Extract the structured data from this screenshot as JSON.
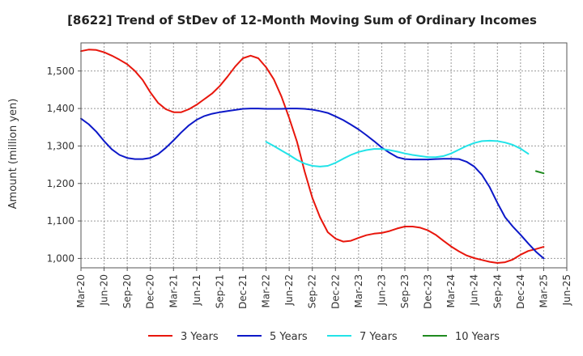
{
  "chart_data": {
    "type": "line",
    "title": "[8622]  Trend of StDev of 12-Month Moving Sum of Ordinary Incomes",
    "xlabel": "",
    "ylabel": "Amount (million yen)",
    "ylim": [
      975,
      1575
    ],
    "y_ticks": [
      1000,
      1100,
      1200,
      1300,
      1400,
      1500
    ],
    "y_tick_labels": [
      "1,000",
      "1,100",
      "1,200",
      "1,300",
      "1,400",
      "1,500"
    ],
    "x_ticks": [
      "Mar-20",
      "Jun-20",
      "Sep-20",
      "Dec-20",
      "Mar-21",
      "Jun-21",
      "Sep-21",
      "Dec-21",
      "Mar-22",
      "Jun-22",
      "Sep-22",
      "Dec-22",
      "Mar-23",
      "Jun-23",
      "Sep-23",
      "Dec-23",
      "Mar-24",
      "Jun-24",
      "Sep-24",
      "Dec-24",
      "Mar-25",
      "Jun-25"
    ],
    "grid": true,
    "legend_position": "bottom",
    "series": [
      {
        "name": "3 Years",
        "color": "#e8160c",
        "start_month_index": 0,
        "values": [
          1553,
          1557,
          1556,
          1550,
          1541,
          1530,
          1518,
          1500,
          1476,
          1443,
          1415,
          1398,
          1390,
          1390,
          1398,
          1410,
          1425,
          1440,
          1460,
          1485,
          1512,
          1534,
          1541,
          1534,
          1510,
          1478,
          1432,
          1375,
          1312,
          1232,
          1162,
          1110,
          1070,
          1053,
          1045,
          1047,
          1055,
          1062,
          1066,
          1068,
          1073,
          1080,
          1085,
          1085,
          1082,
          1075,
          1063,
          1047,
          1032,
          1019,
          1008,
          1001,
          996,
          991,
          988,
          990,
          997,
          1010,
          1020,
          1025,
          1031
        ]
      },
      {
        "name": "5 Years",
        "color": "#0c18c8",
        "start_month_index": 0,
        "values": [
          1373,
          1358,
          1338,
          1313,
          1291,
          1276,
          1268,
          1265,
          1265,
          1268,
          1278,
          1295,
          1315,
          1336,
          1355,
          1370,
          1380,
          1386,
          1390,
          1393,
          1396,
          1399,
          1400,
          1400,
          1399,
          1399,
          1399,
          1400,
          1400,
          1399,
          1397,
          1393,
          1388,
          1379,
          1369,
          1357,
          1344,
          1329,
          1313,
          1296,
          1282,
          1270,
          1265,
          1264,
          1264,
          1264,
          1265,
          1266,
          1266,
          1265,
          1258,
          1245,
          1223,
          1190,
          1148,
          1110,
          1085,
          1063,
          1040,
          1018,
          1000
        ]
      },
      {
        "name": "7 Years",
        "color": "#22e3e8",
        "start_month_index": 24,
        "values": [
          1311,
          1300,
          1288,
          1276,
          1263,
          1253,
          1247,
          1245,
          1247,
          1255,
          1266,
          1276,
          1284,
          1289,
          1292,
          1292,
          1289,
          1285,
          1280,
          1276,
          1273,
          1270,
          1270,
          1273,
          1280,
          1290,
          1300,
          1308,
          1313,
          1314,
          1313,
          1309,
          1303,
          1293,
          1279
        ]
      },
      {
        "name": "10 Years",
        "color": "#1f8a1f",
        "start_month_index": 59,
        "values": [
          1233,
          1227
        ]
      }
    ]
  }
}
